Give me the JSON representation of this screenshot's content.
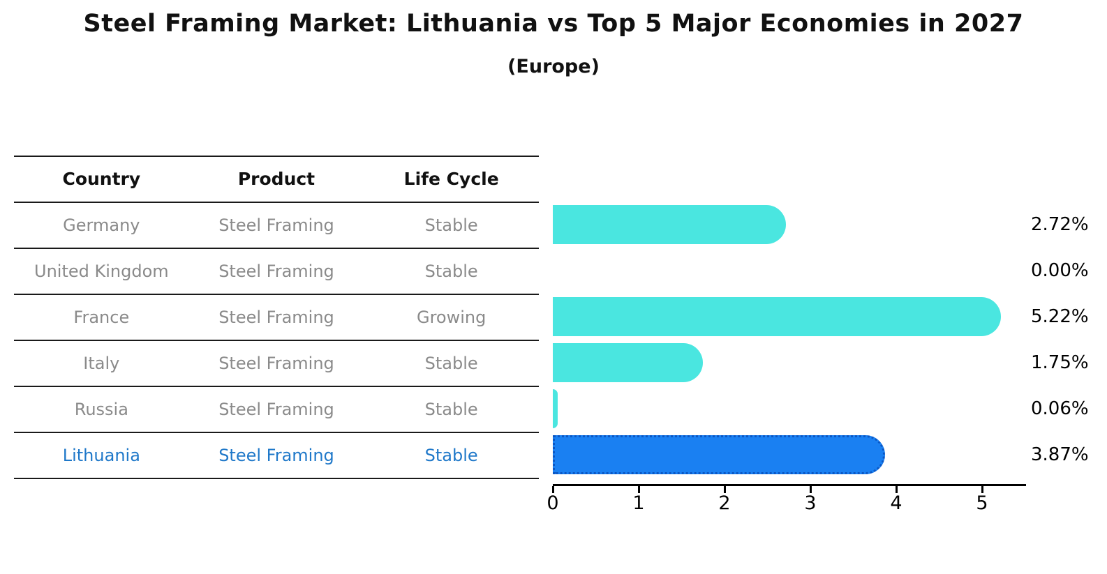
{
  "title": "Steel Framing Market: Lithuania vs Top 5 Major Economies in 2027",
  "subtitle": "(Europe)",
  "table": {
    "headers": [
      "Country",
      "Product",
      "Life Cycle"
    ],
    "rows": [
      {
        "country": "Germany",
        "product": "Steel Framing",
        "life_cycle": "Stable",
        "highlight": false
      },
      {
        "country": "United Kingdom",
        "product": "Steel Framing",
        "life_cycle": "Stable",
        "highlight": false
      },
      {
        "country": "France",
        "product": "Steel Framing",
        "life_cycle": "Growing",
        "highlight": false
      },
      {
        "country": "Italy",
        "product": "Steel Framing",
        "life_cycle": "Stable",
        "highlight": false
      },
      {
        "country": "Russia",
        "product": "Steel Framing",
        "life_cycle": "Stable",
        "highlight": false
      },
      {
        "country": "Lithuania",
        "product": "Steel Framing",
        "life_cycle": "Stable",
        "highlight": true
      }
    ]
  },
  "chart_data": {
    "type": "bar",
    "orientation": "horizontal",
    "categories": [
      "Germany",
      "United Kingdom",
      "France",
      "Italy",
      "Russia",
      "Lithuania"
    ],
    "values": [
      2.72,
      0.0,
      5.22,
      1.75,
      0.06,
      3.87
    ],
    "value_labels": [
      "2.72%",
      "0.00%",
      "5.22%",
      "1.75%",
      "0.06%",
      "3.87%"
    ],
    "title": "Steel Framing Market: Lithuania vs Top 5 Major Economies in 2027 (Europe)",
    "xlabel": "",
    "ylabel": "",
    "xlim": [
      0,
      5.5
    ],
    "x_ticks": [
      0,
      1,
      2,
      3,
      4,
      5
    ],
    "x_tick_labels": [
      "0",
      "1",
      "2",
      "3",
      "4",
      "5"
    ],
    "grid": false,
    "legend": "none",
    "bar_color": "#4ae6e0",
    "highlight_color": "#1a80f2",
    "highlight_index": 5
  },
  "colors": {
    "bar_cyan": "#4ae6e0",
    "bar_blue": "#1a80f2",
    "highlight_text": "#1f78c9",
    "row_text": "#8a8a8a",
    "line": "#1a1a1a"
  }
}
